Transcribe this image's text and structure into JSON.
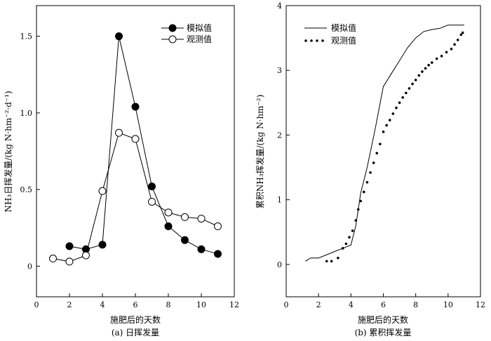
{
  "chart_data": [
    {
      "type": "line",
      "caption": "(a) 日挥发量",
      "xlabel": "施肥后的天数",
      "ylabel": "NH₃日挥发量/(kg N·hm⁻²·d⁻¹)",
      "xlim": [
        0,
        12
      ],
      "ylim": [
        -0.2,
        1.7
      ],
      "xticks": [
        "0",
        "2",
        "4",
        "6",
        "8",
        "10",
        "12"
      ],
      "yticks": [
        "0",
        "0.5",
        "1.0",
        "1.5"
      ],
      "legend_position": "top-right",
      "series": [
        {
          "name": "模拟值",
          "marker": "filled-circle",
          "x": [
            2,
            3,
            4,
            5,
            6,
            7,
            8,
            9,
            10,
            11
          ],
          "y": [
            0.13,
            0.11,
            0.14,
            1.5,
            1.04,
            0.52,
            0.26,
            0.17,
            0.11,
            0.08
          ]
        },
        {
          "name": "观测值",
          "marker": "open-circle",
          "x": [
            1,
            2,
            3,
            4,
            5,
            6,
            7,
            8,
            9,
            10,
            11
          ],
          "y": [
            0.05,
            0.03,
            0.07,
            0.49,
            0.87,
            0.83,
            0.42,
            0.35,
            0.32,
            0.31,
            0.26
          ]
        }
      ]
    },
    {
      "type": "line",
      "caption": "(b) 累积挥发量",
      "xlabel": "施肥后的天数",
      "ylabel": "累积NH₃挥发量/(kg N·hm⁻²)",
      "xlim": [
        0,
        12
      ],
      "ylim": [
        -0.5,
        4
      ],
      "xticks": [
        "0",
        "2",
        "4",
        "6",
        "8",
        "10",
        "12"
      ],
      "yticks": [
        "0",
        "1",
        "2",
        "3",
        "4"
      ],
      "legend_position": "top-left",
      "series": [
        {
          "name": "模拟值",
          "style": "solid-line",
          "x": [
            1.2,
            1.5,
            2,
            2.5,
            3,
            3.5,
            4,
            4.3,
            4.6,
            5,
            5.5,
            6,
            6.5,
            7,
            7.5,
            8,
            8.5,
            9,
            9.5,
            10,
            10.5,
            11
          ],
          "y": [
            0.05,
            0.1,
            0.1,
            0.15,
            0.2,
            0.25,
            0.3,
            0.6,
            1.1,
            1.5,
            2.1,
            2.75,
            2.95,
            3.15,
            3.35,
            3.5,
            3.6,
            3.63,
            3.65,
            3.7,
            3.7,
            3.7
          ]
        },
        {
          "name": "观测值",
          "style": "dotted",
          "x": [
            2.5,
            2.8,
            3.2,
            3.5,
            3.7,
            3.9,
            4.1,
            4.3,
            4.45,
            4.6,
            4.8,
            5.0,
            5.2,
            5.4,
            5.6,
            5.8,
            6.0,
            6.2,
            6.4,
            6.6,
            6.8,
            7.0,
            7.2,
            7.4,
            7.6,
            7.8,
            8.0,
            8.2,
            8.4,
            8.6,
            8.8,
            9.0,
            9.3,
            9.6,
            9.9,
            10.2,
            10.4,
            10.6,
            10.8,
            10.9
          ],
          "y": [
            0.05,
            0.05,
            0.1,
            0.25,
            0.32,
            0.42,
            0.52,
            0.68,
            0.85,
            0.98,
            1.12,
            1.27,
            1.42,
            1.57,
            1.72,
            1.86,
            2.05,
            2.15,
            2.23,
            2.33,
            2.42,
            2.5,
            2.58,
            2.65,
            2.72,
            2.79,
            2.85,
            2.92,
            2.98,
            3.03,
            3.08,
            3.12,
            3.18,
            3.22,
            3.28,
            3.33,
            3.4,
            3.47,
            3.55,
            3.58
          ]
        }
      ]
    }
  ]
}
